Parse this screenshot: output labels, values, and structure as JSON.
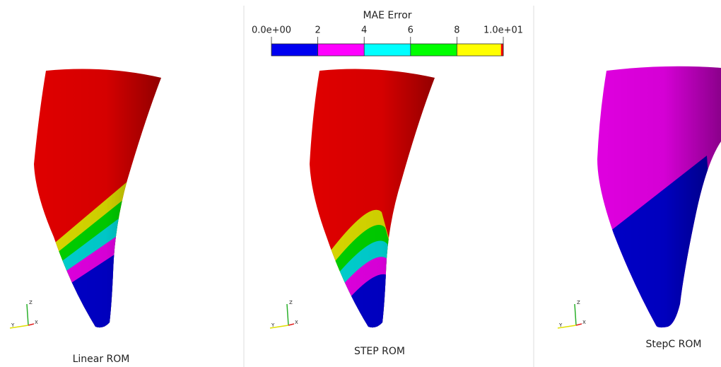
{
  "colorbar": {
    "title": "MAE Error",
    "ticks": [
      {
        "value": 0,
        "label": "0.0e+00"
      },
      2,
      4,
      6,
      8,
      {
        "value": 10,
        "label": "1.0e+01"
      }
    ],
    "range": [
      0,
      10
    ],
    "segments": [
      {
        "from": 0,
        "to": 2,
        "color": "#0000f0"
      },
      {
        "from": 2,
        "to": 4,
        "color": "#ff00ff"
      },
      {
        "from": 4,
        "to": 6,
        "color": "#00ffff"
      },
      {
        "from": 6,
        "to": 8,
        "color": "#00ff00"
      },
      {
        "from": 8,
        "to": 9.9,
        "color": "#ffff00"
      },
      {
        "from": 9.9,
        "to": 10,
        "color": "#ff0000"
      }
    ]
  },
  "axes_labels": [
    "Z",
    "Y",
    "X"
  ],
  "panels": [
    {
      "label": "Linear ROM"
    },
    {
      "label": "STEP ROM"
    },
    {
      "label": "StepC ROM"
    }
  ]
}
